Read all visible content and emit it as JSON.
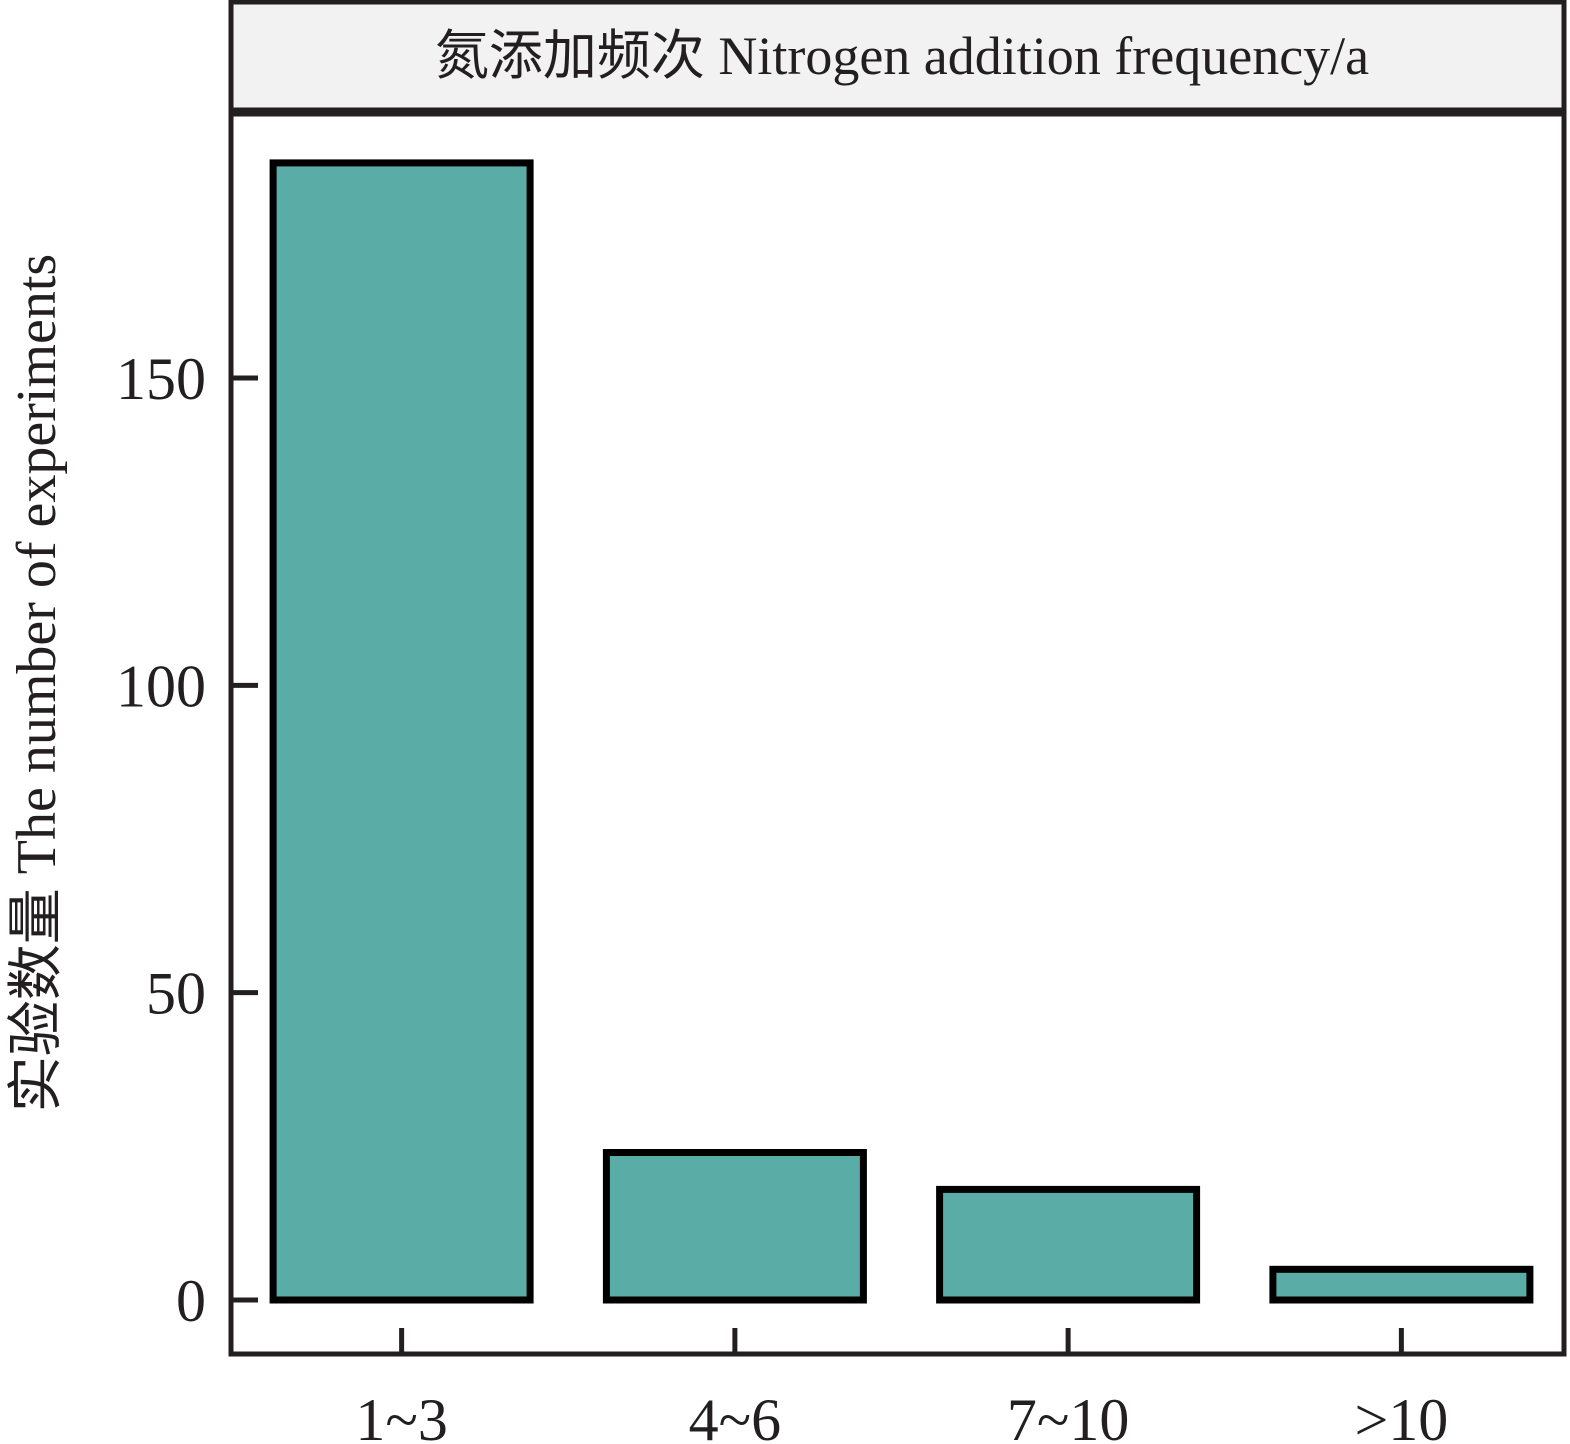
{
  "chart_data": {
    "type": "bar",
    "title": "氮添加频次 Nitrogen addition frequency/a",
    "xlabel": "",
    "ylabel": "实验数量 The number of experiments",
    "categories": [
      "1~3",
      "4~6",
      "7~10",
      ">10"
    ],
    "values": [
      185,
      24,
      18,
      5
    ],
    "ylim": [
      -9,
      194
    ],
    "yticks": [
      0,
      50,
      100,
      150
    ],
    "grid": false,
    "bar_color": "#5aaca6",
    "bar_edge_color": "#000000",
    "strip_color": "#f2f2f2"
  }
}
